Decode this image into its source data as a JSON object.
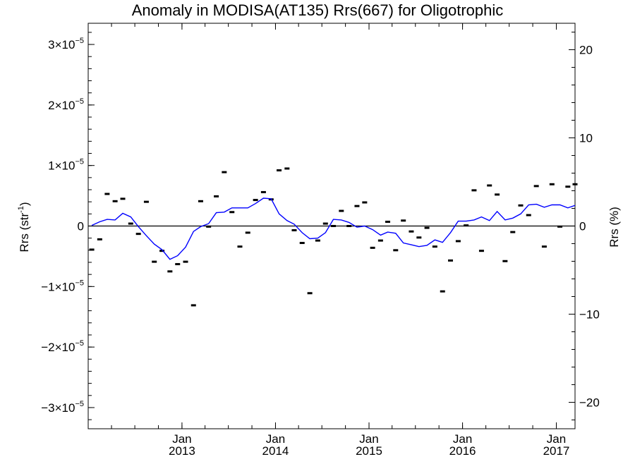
{
  "chart_data": {
    "type": "line",
    "title": "Anomaly in MODISA(AT135) Rrs(667) for Oligotrophic",
    "ylabel": "Rrs (str",
    "ylabel_sup": "-1",
    "ylabel_close": ")",
    "ylabel_right": "Rrs (%)",
    "xlabel": "",
    "xlim": [
      "2012-01-01",
      "2017-03-15"
    ],
    "ylim": [
      -3.35e-05,
      3.35e-05
    ],
    "ylim_right": [
      -23,
      23
    ],
    "grid": false,
    "legend": "none",
    "colors": {
      "line": "#0000ff",
      "points": "#000000",
      "zero_line": "#000000"
    },
    "left_ticks": [
      {
        "value": 3e-05,
        "mantissa": "3",
        "times": "×10",
        "exp": "−5"
      },
      {
        "value": 2e-05,
        "mantissa": "2",
        "times": "×10",
        "exp": "−5"
      },
      {
        "value": 1e-05,
        "mantissa": "1",
        "times": "×10",
        "exp": "−5"
      },
      {
        "value": 0,
        "mantissa": "0",
        "times": "",
        "exp": ""
      },
      {
        "value": -1e-05,
        "mantissa": "−1",
        "times": "×10",
        "exp": "−5"
      },
      {
        "value": -2e-05,
        "mantissa": "−2",
        "times": "×10",
        "exp": "−5"
      },
      {
        "value": -3e-05,
        "mantissa": "−3",
        "times": "×10",
        "exp": "−5"
      }
    ],
    "right_ticks": [
      {
        "value": 20,
        "label": "20"
      },
      {
        "value": 10,
        "label": "10"
      },
      {
        "value": 0,
        "label": "0"
      },
      {
        "value": -10,
        "label": "−10"
      },
      {
        "value": -20,
        "label": "−20"
      }
    ],
    "x_ticks": [
      {
        "date": "2013-01-01",
        "month": "Jan",
        "year": "2013"
      },
      {
        "date": "2014-01-01",
        "month": "Jan",
        "year": "2014"
      },
      {
        "date": "2015-01-01",
        "month": "Jan",
        "year": "2015"
      },
      {
        "date": "2016-01-01",
        "month": "Jan",
        "year": "2016"
      },
      {
        "date": "2017-01-01",
        "month": "Jan",
        "year": "2017"
      }
    ],
    "series": [
      {
        "type": "scatter",
        "x": [
          "2012-01",
          "2012-02",
          "2012-03",
          "2012-04",
          "2012-05",
          "2012-06",
          "2012-07",
          "2012-08",
          "2012-09",
          "2012-10",
          "2012-11",
          "2012-12",
          "2013-01",
          "2013-02",
          "2013-03",
          "2013-04",
          "2013-05",
          "2013-06",
          "2013-07",
          "2013-08",
          "2013-09",
          "2013-10",
          "2013-11",
          "2013-12",
          "2014-01",
          "2014-02",
          "2014-03",
          "2014-04",
          "2014-05",
          "2014-06",
          "2014-07",
          "2014-08",
          "2014-09",
          "2014-10",
          "2014-11",
          "2014-12",
          "2015-01",
          "2015-02",
          "2015-03",
          "2015-04",
          "2015-05",
          "2015-06",
          "2015-07",
          "2015-08",
          "2015-09",
          "2015-10",
          "2015-11",
          "2015-12",
          "2016-01",
          "2016-02",
          "2016-03",
          "2016-04",
          "2016-05",
          "2016-06",
          "2016-07",
          "2016-08",
          "2016-09",
          "2016-10",
          "2016-11",
          "2016-12",
          "2017-01",
          "2017-02",
          "2017-03"
        ],
        "y": [
          -3.9e-06,
          -2.2e-06,
          5.3e-06,
          4.1e-06,
          4.5e-06,
          4e-07,
          -1.3e-06,
          4e-06,
          -5.9e-06,
          -4.1e-06,
          -7.5e-06,
          -6.3e-06,
          -5.9e-06,
          -1.31e-05,
          4.1e-06,
          -1e-07,
          4.9e-06,
          8.9e-06,
          2.3e-06,
          -3.4e-06,
          -1.1e-06,
          4.3e-06,
          5.6e-06,
          4.4e-06,
          9.2e-06,
          9.5e-06,
          -7e-07,
          -2.8e-06,
          -1.11e-05,
          -2.4e-06,
          4e-07,
          0.0,
          2.5e-06,
          0.0,
          3.3e-06,
          3.9e-06,
          -3.6e-06,
          -2.4e-06,
          7e-07,
          -4e-06,
          9e-07,
          -9e-07,
          -1.9e-06,
          -3e-07,
          -3.4e-06,
          -1.08e-05,
          -5.7e-06,
          -2.5e-06,
          1e-07,
          5.9e-06,
          -4.1e-06,
          6.7e-06,
          5.2e-06,
          -5.8e-06,
          -1e-06,
          3.4e-06,
          1.8e-06,
          6.6e-06,
          -3.4e-06,
          6.9e-06,
          -1e-07,
          6.5e-06,
          6.9e-06
        ]
      },
      {
        "type": "line",
        "x": [
          "2012-01",
          "2012-02",
          "2012-03",
          "2012-04",
          "2012-05",
          "2012-06",
          "2012-07",
          "2012-08",
          "2012-09",
          "2012-10",
          "2012-11",
          "2012-12",
          "2013-01",
          "2013-02",
          "2013-03",
          "2013-04",
          "2013-05",
          "2013-06",
          "2013-07",
          "2013-08",
          "2013-09",
          "2013-10",
          "2013-11",
          "2013-12",
          "2014-01",
          "2014-02",
          "2014-03",
          "2014-04",
          "2014-05",
          "2014-06",
          "2014-07",
          "2014-08",
          "2014-09",
          "2014-10",
          "2014-11",
          "2014-12",
          "2015-01",
          "2015-02",
          "2015-03",
          "2015-04",
          "2015-05",
          "2015-06",
          "2015-07",
          "2015-08",
          "2015-09",
          "2015-10",
          "2015-11",
          "2015-12",
          "2016-01",
          "2016-02",
          "2016-03",
          "2016-04",
          "2016-05",
          "2016-06",
          "2016-07",
          "2016-08",
          "2016-09",
          "2016-10",
          "2016-11",
          "2016-12",
          "2017-01",
          "2017-02",
          "2017-03"
        ],
        "y": [
          1e-07,
          7e-07,
          1.1e-06,
          1e-06,
          2.1e-06,
          1.5e-06,
          -1e-07,
          -1.6e-06,
          -3e-06,
          -3.9e-06,
          -5.5e-06,
          -4.9e-06,
          -3.5e-06,
          -9e-07,
          -1e-07,
          4e-07,
          2.2e-06,
          2.3e-06,
          3e-06,
          3e-06,
          3e-06,
          3.7e-06,
          4.6e-06,
          4.5e-06,
          2e-06,
          9e-07,
          3e-07,
          -1.1e-06,
          -2.1e-06,
          -2e-06,
          -1.1e-06,
          1.1e-06,
          1e-06,
          6e-07,
          -2e-07,
          0.0,
          -6e-07,
          -1.5e-06,
          -1e-06,
          -1.2e-06,
          -2.8e-06,
          -3.1e-06,
          -3.4e-06,
          -3.2e-06,
          -2.3e-06,
          -2.7e-06,
          -1.1e-06,
          8e-07,
          8e-07,
          1e-06,
          1.5e-06,
          9e-07,
          2.4e-06,
          1e-06,
          1.3e-06,
          2e-06,
          3.5e-06,
          3.6e-06,
          3.1e-06,
          3.5e-06,
          3.5e-06,
          3e-06,
          3.4e-06
        ]
      }
    ]
  }
}
